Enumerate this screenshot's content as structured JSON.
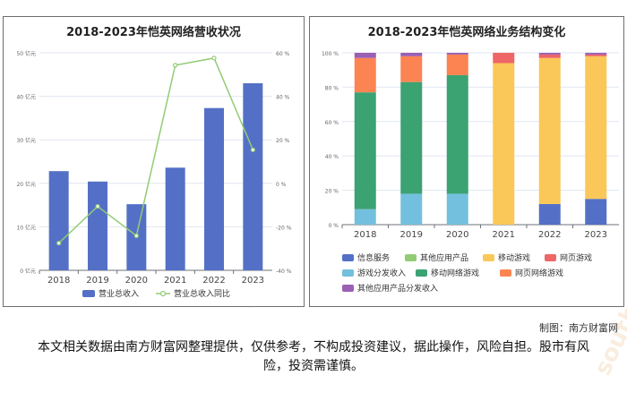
{
  "credit": "制图：南方财富网",
  "disclaimer": "本文相关数据由南方财富网整理提供，仅供参考，不构成投资建议，据此操作，风险自担。股市有风险，投资需谨慎。",
  "watermark": {
    "site_cn": "南方财富网",
    "site_en": "southmoney.com"
  },
  "chart_data": [
    {
      "type": "bar",
      "title": "2018-2023年恺英网络营收状况",
      "categories": [
        "2018",
        "2019",
        "2020",
        "2021",
        "2022",
        "2023"
      ],
      "series": [
        {
          "name": "营业总收入",
          "type": "bar",
          "axis": "left",
          "color": "#5470c6",
          "values": [
            22.8,
            20.4,
            15.2,
            23.6,
            37.3,
            43.0
          ]
        },
        {
          "name": "营业总收入同比",
          "type": "line",
          "axis": "right",
          "color": "#91cc75",
          "values": [
            -27.5,
            -10.6,
            -24.1,
            54.3,
            57.6,
            15.4
          ]
        }
      ],
      "y_left": {
        "ticks": [
          "0 亿元",
          "10 亿元",
          "20 亿元",
          "30 亿元",
          "40 亿元",
          "50 亿元"
        ],
        "min": 0,
        "max": 50
      },
      "y_right": {
        "ticks": [
          "-40 %",
          "-20 %",
          "0 %",
          "20 %",
          "40 %",
          "60 %"
        ],
        "min": -40,
        "max": 60
      },
      "grid": true,
      "legend": "bottom"
    },
    {
      "type": "bar",
      "stacked": true,
      "title": "2018-2023年恺英网络业务结构变化",
      "categories": [
        "2018",
        "2019",
        "2020",
        "2021",
        "2022",
        "2023"
      ],
      "series": [
        {
          "name": "信息服务",
          "color": "#5470c6",
          "values": [
            0,
            0,
            0,
            0,
            12,
            15
          ]
        },
        {
          "name": "游戏分发收入",
          "color": "#73c0de",
          "values": [
            9,
            18,
            18,
            0,
            0,
            0
          ]
        },
        {
          "name": "其他应用产品",
          "color": "#91cc75",
          "values": [
            0,
            0,
            0,
            0,
            0,
            0
          ]
        },
        {
          "name": "移动网络游戏",
          "color": "#3ba272",
          "values": [
            68,
            65,
            69,
            0,
            0,
            0
          ]
        },
        {
          "name": "移动游戏",
          "color": "#fac858",
          "values": [
            0,
            0,
            0,
            94,
            85,
            83
          ]
        },
        {
          "name": "网页网络游戏",
          "color": "#fc8452",
          "values": [
            20,
            15,
            12,
            0,
            0,
            0
          ]
        },
        {
          "name": "网页游戏",
          "color": "#ee6666",
          "values": [
            0,
            0,
            0,
            6,
            2,
            1
          ]
        },
        {
          "name": "其他应用产品分发收入",
          "color": "#9a60b4",
          "values": [
            3,
            2,
            1,
            0,
            1,
            1
          ]
        }
      ],
      "y": {
        "ticks": [
          "0 %",
          "20 %",
          "40 %",
          "60 %",
          "80 %",
          "100 %"
        ],
        "min": 0,
        "max": 100
      },
      "grid": true,
      "legend": "bottom"
    }
  ]
}
